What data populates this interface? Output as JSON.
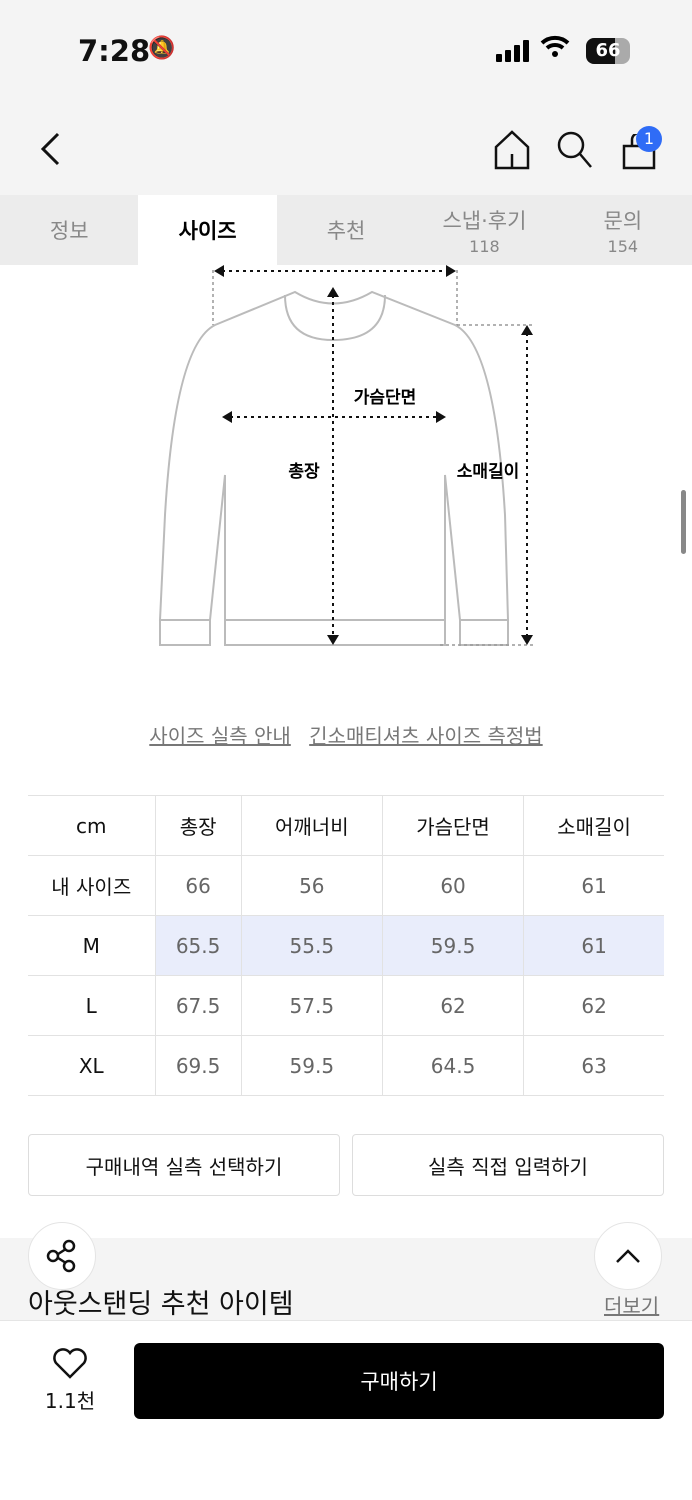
{
  "status": {
    "time": "7:28",
    "battery": "66"
  },
  "nav": {
    "cart_badge": "1"
  },
  "tabs": [
    {
      "label": "정보"
    },
    {
      "label": "사이즈",
      "active": true
    },
    {
      "label": "추천"
    },
    {
      "label": "스냅·후기",
      "count": "118"
    },
    {
      "label": "문의",
      "count": "154"
    }
  ],
  "diagram": {
    "chest": "가슴단면",
    "length": "총장",
    "sleeve": "소매길이"
  },
  "links": {
    "guide": "사이즈 실측 안내",
    "method": "긴소매티셔츠 사이즈 측정법"
  },
  "size_table": {
    "header": [
      "cm",
      "총장",
      "어깨너비",
      "가슴단면",
      "소매길이"
    ],
    "rows": [
      [
        "내 사이즈",
        "66",
        "56",
        "60",
        "61"
      ],
      [
        "M",
        "65.5",
        "55.5",
        "59.5",
        "61"
      ],
      [
        "L",
        "67.5",
        "57.5",
        "62",
        "62"
      ],
      [
        "XL",
        "69.5",
        "59.5",
        "64.5",
        "63"
      ]
    ],
    "highlight_row": "M"
  },
  "buttons": {
    "select_history": "구매내역 실측 선택하기",
    "manual_input": "실측 직접 입력하기"
  },
  "recommend": {
    "title": "아웃스탠딩 추천 아이템",
    "more": "더보기"
  },
  "bottom": {
    "likes": "1.1천",
    "buy": "구매하기"
  },
  "colors": {
    "badge": "#2f6cf6",
    "highlight": "#e9edfb",
    "buy_bg": "#000000"
  }
}
